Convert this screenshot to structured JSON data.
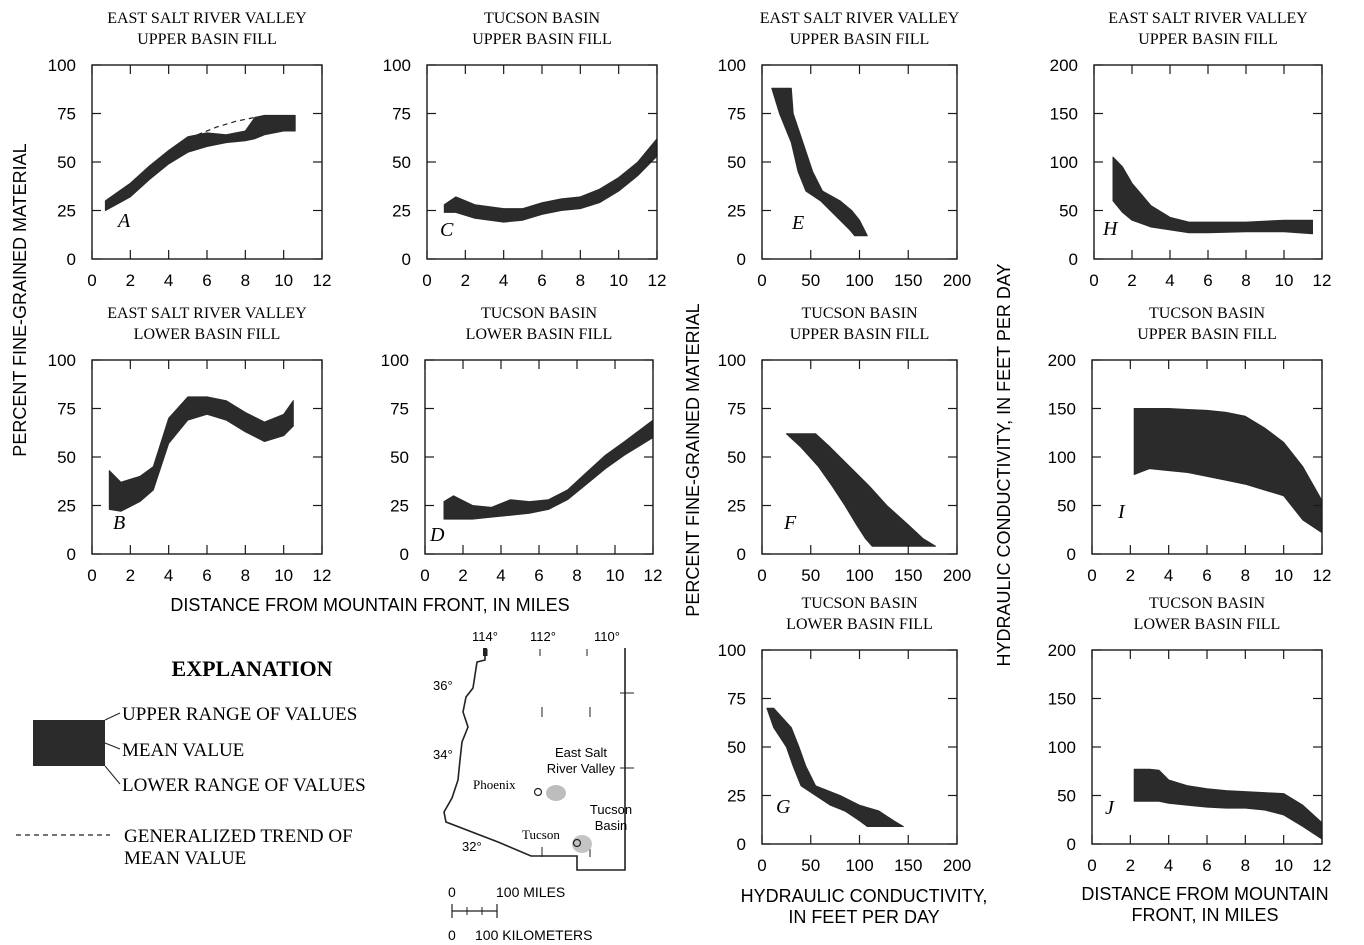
{
  "figure": {
    "y_label_left": "PERCENT FINE-GRAINED MATERIAL",
    "x_label_mid": "DISTANCE FROM MOUNTAIN FRONT, IN MILES",
    "y_label_center": "PERCENT FINE-GRAINED MATERIAL",
    "x_label_center_1": "HYDRAULIC CONDUCTIVITY,",
    "x_label_center_2": "IN FEET PER DAY",
    "y_label_right": "HYDRAULIC CONDUCTIVITY, IN FEET PER DAY",
    "x_label_right_1": "DISTANCE FROM MOUNTAIN",
    "x_label_right_2": "FRONT, IN MILES"
  },
  "explanation": {
    "heading": "EXPLANATION",
    "upper": "UPPER RANGE OF VALUES",
    "mean": "MEAN VALUE",
    "lower": "LOWER RANGE OF VALUES",
    "trend_1": "GENERALIZED TREND OF",
    "trend_2": "MEAN VALUE",
    "band_color": "#2b2b2b"
  },
  "map": {
    "lon_labels": [
      "114°",
      "112°",
      "110°"
    ],
    "lat_labels": [
      "36°",
      "34°",
      "32°"
    ],
    "phoenix": "Phoenix",
    "tucson": "Tucson",
    "esrv_1": "East Salt",
    "esrv_2": "River Valley",
    "tb_1": "Tucson",
    "tb_2": "Basin",
    "scale_miles_0": "0",
    "scale_miles": "100 MILES",
    "scale_km_0": "0",
    "scale_km": "100 KILOMETERS"
  },
  "chart_data": [
    {
      "id": "A",
      "type": "area",
      "title": [
        "EAST SALT RIVER VALLEY",
        "UPPER BASIN FILL"
      ],
      "xlabel": "",
      "ylabel": "",
      "xlim": [
        0,
        12
      ],
      "ylim": [
        0,
        100
      ],
      "xticks": [
        0,
        2,
        4,
        6,
        8,
        10,
        12
      ],
      "yticks": [
        0,
        25,
        50,
        75,
        100
      ],
      "band": {
        "x": [
          0.7,
          2,
          3,
          4,
          5,
          6,
          7,
          8,
          8.5,
          9,
          10,
          10.6
        ],
        "upper": [
          30,
          39,
          48,
          56,
          63,
          65,
          64,
          66,
          73,
          74,
          74,
          74
        ],
        "lower": [
          25,
          32,
          41,
          49,
          55,
          58,
          60,
          61,
          62,
          64,
          66,
          66
        ]
      },
      "trend": {
        "x": [
          5.5,
          6.5,
          7.5,
          8.5
        ],
        "y": [
          64,
          68,
          71,
          73
        ]
      }
    },
    {
      "id": "B",
      "type": "area",
      "title": [
        "EAST SALT RIVER VALLEY",
        "LOWER BASIN FILL"
      ],
      "xlabel": "",
      "ylabel": "",
      "xlim": [
        0,
        12
      ],
      "ylim": [
        0,
        100
      ],
      "xticks": [
        0,
        2,
        4,
        6,
        8,
        10,
        12
      ],
      "yticks": [
        0,
        25,
        50,
        75,
        100
      ],
      "band": {
        "x": [
          0.9,
          1.5,
          2.5,
          3.2,
          4,
          5,
          6,
          7,
          8,
          9,
          10,
          10.5
        ],
        "upper": [
          43,
          37,
          40,
          45,
          70,
          81,
          81,
          79,
          73,
          68,
          72,
          79
        ],
        "lower": [
          23,
          22,
          27,
          33,
          57,
          69,
          72,
          69,
          63,
          58,
          61,
          66
        ]
      }
    },
    {
      "id": "C",
      "type": "area",
      "title": [
        "TUCSON BASIN",
        "UPPER BASIN FILL"
      ],
      "xlabel": "",
      "ylabel": "",
      "xlim": [
        0,
        12
      ],
      "ylim": [
        0,
        100
      ],
      "xticks": [
        0,
        2,
        4,
        6,
        8,
        10,
        12
      ],
      "yticks": [
        0,
        25,
        50,
        75,
        100
      ],
      "band": {
        "x": [
          0.9,
          1.5,
          2.5,
          4,
          5,
          6,
          7,
          8,
          9,
          10,
          11,
          12
        ],
        "upper": [
          28,
          32,
          28,
          26,
          26,
          29,
          31,
          32,
          36,
          42,
          50,
          62
        ],
        "lower": [
          24,
          24,
          21,
          19,
          20,
          23,
          25,
          26,
          29,
          35,
          43,
          53
        ]
      }
    },
    {
      "id": "D",
      "type": "area",
      "title": [
        "TUCSON BASIN",
        "LOWER BASIN FILL"
      ],
      "xlabel": "",
      "ylabel": "",
      "xlim": [
        0,
        12
      ],
      "ylim": [
        0,
        100
      ],
      "xticks": [
        0,
        2,
        4,
        6,
        8,
        10,
        12
      ],
      "yticks": [
        0,
        25,
        50,
        75,
        100
      ],
      "band": {
        "x": [
          1,
          1.5,
          2.5,
          3.5,
          4.5,
          5.5,
          6.5,
          7.5,
          8.5,
          9.5,
          10.5,
          12
        ],
        "upper": [
          27,
          30,
          25,
          24,
          28,
          27,
          28,
          33,
          42,
          51,
          58,
          69
        ],
        "lower": [
          18,
          18,
          18,
          19,
          20,
          21,
          23,
          28,
          36,
          44,
          51,
          60
        ]
      }
    },
    {
      "id": "E",
      "type": "area",
      "title": [
        "EAST SALT RIVER VALLEY",
        "UPPER BASIN FILL"
      ],
      "xlabel": "",
      "ylabel": "",
      "xlim": [
        0,
        200
      ],
      "ylim": [
        0,
        100
      ],
      "xticks": [
        0,
        50,
        100,
        150,
        200
      ],
      "yticks": [
        0,
        25,
        50,
        75,
        100
      ],
      "band": {
        "y": [
          88,
          75,
          60,
          45,
          35,
          30,
          25,
          20,
          15,
          12
        ],
        "xleft": [
          10,
          18,
          30,
          37,
          45,
          60,
          70,
          80,
          90,
          95
        ],
        "xright": [
          30,
          32,
          42,
          52,
          62,
          80,
          92,
          100,
          105,
          108
        ]
      }
    },
    {
      "id": "F",
      "type": "area",
      "title": [
        "TUCSON BASIN",
        "UPPER BASIN FILL"
      ],
      "xlabel": "",
      "ylabel": "",
      "xlim": [
        0,
        200
      ],
      "ylim": [
        0,
        100
      ],
      "xticks": [
        0,
        50,
        100,
        150,
        200
      ],
      "yticks": [
        0,
        25,
        50,
        75,
        100
      ],
      "band": {
        "y": [
          62,
          55,
          45,
          35,
          25,
          15,
          8,
          4
        ],
        "xleft": [
          25,
          40,
          58,
          72,
          85,
          97,
          106,
          113
        ],
        "xright": [
          55,
          70,
          90,
          110,
          128,
          150,
          165,
          178
        ]
      }
    },
    {
      "id": "G",
      "type": "area",
      "title": [
        "TUCSON BASIN",
        "LOWER BASIN FILL"
      ],
      "xlabel": "",
      "ylabel": "",
      "xlim": [
        0,
        200
      ],
      "ylim": [
        0,
        100
      ],
      "xticks": [
        0,
        50,
        100,
        150,
        200
      ],
      "yticks": [
        0,
        25,
        50,
        75,
        100
      ],
      "band": {
        "y": [
          70,
          60,
          50,
          40,
          30,
          25,
          20,
          17,
          12,
          9
        ],
        "xleft": [
          5,
          12,
          25,
          32,
          40,
          55,
          70,
          85,
          100,
          108
        ],
        "xright": [
          12,
          30,
          38,
          45,
          55,
          80,
          100,
          120,
          135,
          145
        ]
      }
    },
    {
      "id": "H",
      "type": "area",
      "title": [
        "EAST SALT RIVER VALLEY",
        "UPPER BASIN FILL"
      ],
      "xlabel": "",
      "ylabel": "",
      "xlim": [
        0,
        12
      ],
      "ylim": [
        0,
        200
      ],
      "xticks": [
        0,
        2,
        4,
        6,
        8,
        10,
        12
      ],
      "yticks": [
        0,
        50,
        100,
        150,
        200
      ],
      "band": {
        "x": [
          1,
          1.5,
          2,
          3,
          4,
          5,
          6,
          8,
          10,
          11.5
        ],
        "upper": [
          105,
          95,
          78,
          55,
          43,
          38,
          38,
          38,
          40,
          40
        ],
        "lower": [
          60,
          48,
          40,
          33,
          30,
          27,
          27,
          28,
          28,
          26
        ]
      }
    },
    {
      "id": "I",
      "type": "area",
      "title": [
        "TUCSON BASIN",
        "UPPER BASIN FILL"
      ],
      "xlabel": "",
      "ylabel": "",
      "xlim": [
        0,
        12
      ],
      "ylim": [
        0,
        200
      ],
      "xticks": [
        0,
        2,
        4,
        6,
        8,
        10,
        12
      ],
      "yticks": [
        0,
        50,
        100,
        150,
        200
      ],
      "band": {
        "x": [
          2.2,
          3,
          4,
          5,
          6,
          7,
          8,
          9,
          10,
          11,
          12
        ],
        "upper": [
          150,
          150,
          150,
          149,
          148,
          146,
          142,
          130,
          115,
          90,
          55
        ],
        "lower": [
          82,
          88,
          86,
          84,
          80,
          76,
          72,
          66,
          60,
          35,
          22
        ]
      }
    },
    {
      "id": "J",
      "type": "area",
      "title": [
        "TUCSON BASIN",
        "LOWER BASIN FILL"
      ],
      "xlabel": "",
      "ylabel": "",
      "xlim": [
        0,
        12
      ],
      "ylim": [
        0,
        200
      ],
      "xticks": [
        0,
        2,
        4,
        6,
        8,
        10,
        12
      ],
      "yticks": [
        0,
        50,
        100,
        150,
        200
      ],
      "band": {
        "x": [
          2.2,
          3,
          3.5,
          4,
          5,
          6,
          7,
          8,
          9,
          10,
          11,
          12
        ],
        "upper": [
          77,
          77,
          76,
          66,
          60,
          57,
          55,
          54,
          53,
          52,
          40,
          22
        ],
        "lower": [
          44,
          44,
          44,
          42,
          40,
          38,
          37,
          37,
          35,
          30,
          18,
          5
        ]
      }
    }
  ]
}
